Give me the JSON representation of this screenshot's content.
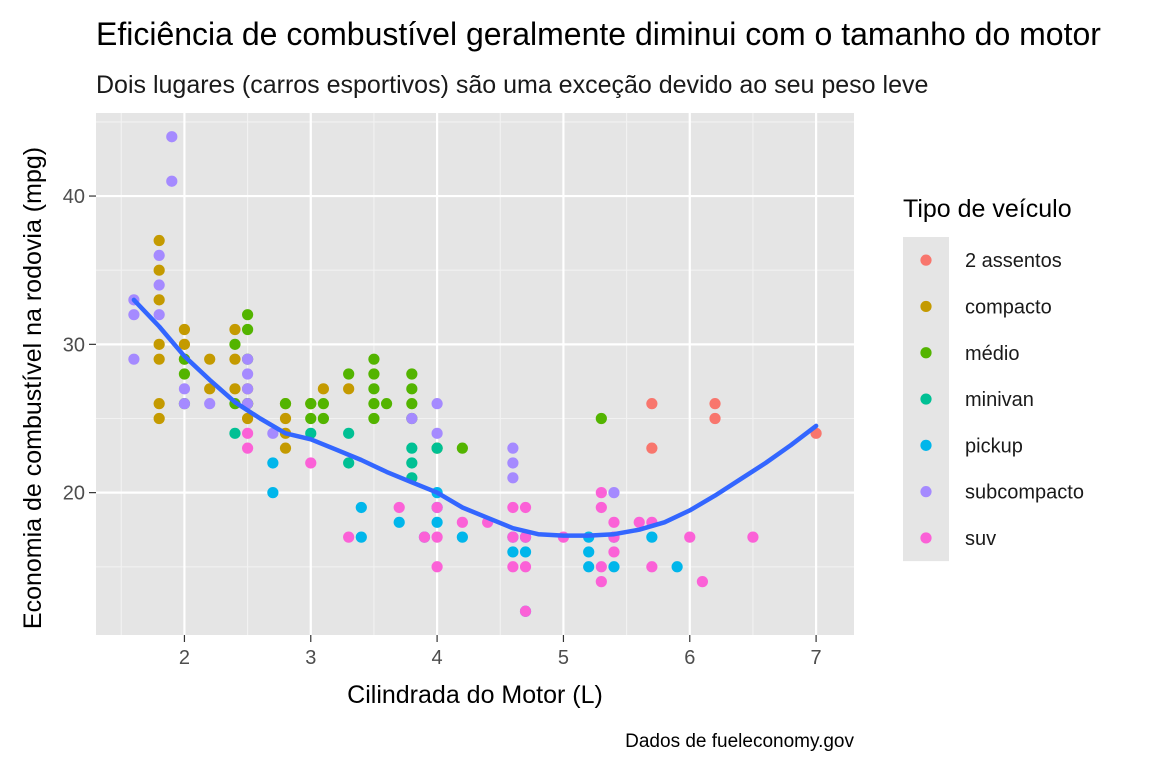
{
  "chart_data": {
    "type": "scatter",
    "title": "Eficiência de combustível geralmente diminui com o tamanho do motor",
    "subtitle": "Dois lugares (carros esportivos) são uma exceção devido ao seu peso leve",
    "caption": "Dados de fueleconomy.gov",
    "xlabel": "Cilindrada do Motor (L)",
    "ylabel": "Economia de combustível na rodovia (mpg)",
    "xlim": [
      1.3,
      7.3
    ],
    "ylim": [
      10.4,
      45.6
    ],
    "xticks": [
      2,
      3,
      4,
      5,
      6,
      7
    ],
    "yticks": [
      20,
      30,
      40
    ],
    "grid": true,
    "background": "#e5e5e5",
    "legend": {
      "title": "Tipo de veículo",
      "position": "right",
      "entries": [
        {
          "label": "2 assentos",
          "color": "#F8766D"
        },
        {
          "label": "compacto",
          "color": "#C49A00"
        },
        {
          "label": "médio",
          "color": "#53B400"
        },
        {
          "label": "minivan",
          "color": "#00C094"
        },
        {
          "label": "pickup",
          "color": "#00B6EB"
        },
        {
          "label": "subcompacto",
          "color": "#A58AFF"
        },
        {
          "label": "suv",
          "color": "#FB61D7"
        }
      ]
    },
    "series": [
      {
        "name": "2 assentos",
        "color": "#F8766D",
        "points": [
          [
            5.7,
            26
          ],
          [
            5.7,
            23
          ],
          [
            6.2,
            26
          ],
          [
            6.2,
            25
          ],
          [
            7.0,
            24
          ]
        ]
      },
      {
        "name": "compacto",
        "color": "#C49A00",
        "points": [
          [
            1.8,
            37
          ],
          [
            1.8,
            35
          ],
          [
            1.8,
            33
          ],
          [
            1.8,
            30
          ],
          [
            1.8,
            29
          ],
          [
            1.8,
            26
          ],
          [
            1.8,
            25
          ],
          [
            2.0,
            31
          ],
          [
            2.0,
            30
          ],
          [
            2.0,
            29
          ],
          [
            2.2,
            29
          ],
          [
            2.2,
            27
          ],
          [
            2.4,
            31
          ],
          [
            2.4,
            29
          ],
          [
            2.4,
            27
          ],
          [
            2.5,
            27
          ],
          [
            2.5,
            26
          ],
          [
            2.5,
            25
          ],
          [
            2.8,
            26
          ],
          [
            2.8,
            25
          ],
          [
            2.8,
            24
          ],
          [
            2.8,
            23
          ],
          [
            3.0,
            26
          ],
          [
            3.1,
            27
          ],
          [
            3.3,
            27
          ]
        ]
      },
      {
        "name": "médio",
        "color": "#53B400",
        "points": [
          [
            2.0,
            29
          ],
          [
            2.0,
            28
          ],
          [
            2.0,
            26
          ],
          [
            2.4,
            30
          ],
          [
            2.4,
            26
          ],
          [
            2.5,
            32
          ],
          [
            2.5,
            31
          ],
          [
            2.5,
            29
          ],
          [
            2.5,
            26
          ],
          [
            2.8,
            26
          ],
          [
            3.0,
            26
          ],
          [
            3.0,
            25
          ],
          [
            3.1,
            26
          ],
          [
            3.1,
            25
          ],
          [
            3.3,
            28
          ],
          [
            3.5,
            29
          ],
          [
            3.5,
            28
          ],
          [
            3.5,
            27
          ],
          [
            3.5,
            26
          ],
          [
            3.5,
            25
          ],
          [
            3.6,
            26
          ],
          [
            3.8,
            28
          ],
          [
            3.8,
            27
          ],
          [
            3.8,
            26
          ],
          [
            3.8,
            25
          ],
          [
            4.0,
            23
          ],
          [
            4.2,
            23
          ],
          [
            5.3,
            25
          ]
        ]
      },
      {
        "name": "minivan",
        "color": "#00C094",
        "points": [
          [
            2.4,
            24
          ],
          [
            3.0,
            24
          ],
          [
            3.3,
            24
          ],
          [
            3.3,
            22
          ],
          [
            3.8,
            23
          ],
          [
            3.8,
            22
          ],
          [
            3.8,
            21
          ],
          [
            4.0,
            23
          ]
        ]
      },
      {
        "name": "pickup",
        "color": "#00B6EB",
        "points": [
          [
            2.7,
            22
          ],
          [
            2.7,
            20
          ],
          [
            3.4,
            19
          ],
          [
            3.4,
            17
          ],
          [
            3.7,
            18
          ],
          [
            3.9,
            17
          ],
          [
            4.0,
            20
          ],
          [
            4.0,
            19
          ],
          [
            4.0,
            18
          ],
          [
            4.2,
            17
          ],
          [
            4.6,
            17
          ],
          [
            4.6,
            16
          ],
          [
            4.7,
            17
          ],
          [
            4.7,
            16
          ],
          [
            4.7,
            12
          ],
          [
            5.2,
            17
          ],
          [
            5.2,
            16
          ],
          [
            5.2,
            15
          ],
          [
            5.4,
            17
          ],
          [
            5.4,
            15
          ],
          [
            5.7,
            17
          ],
          [
            5.9,
            15
          ]
        ]
      },
      {
        "name": "subcompacto",
        "color": "#A58AFF",
        "points": [
          [
            1.6,
            33
          ],
          [
            1.6,
            32
          ],
          [
            1.6,
            29
          ],
          [
            1.8,
            36
          ],
          [
            1.8,
            34
          ],
          [
            1.8,
            32
          ],
          [
            1.9,
            44
          ],
          [
            1.9,
            41
          ],
          [
            2.0,
            27
          ],
          [
            2.0,
            26
          ],
          [
            2.2,
            26
          ],
          [
            2.5,
            29
          ],
          [
            2.5,
            28
          ],
          [
            2.5,
            27
          ],
          [
            2.5,
            26
          ],
          [
            2.7,
            24
          ],
          [
            3.8,
            25
          ],
          [
            4.0,
            26
          ],
          [
            4.0,
            24
          ],
          [
            4.6,
            23
          ],
          [
            4.6,
            22
          ],
          [
            4.6,
            21
          ],
          [
            5.4,
            20
          ]
        ]
      },
      {
        "name": "suv",
        "color": "#FB61D7",
        "points": [
          [
            2.5,
            24
          ],
          [
            2.5,
            23
          ],
          [
            3.0,
            22
          ],
          [
            3.3,
            17
          ],
          [
            3.7,
            19
          ],
          [
            3.9,
            17
          ],
          [
            4.0,
            19
          ],
          [
            4.0,
            17
          ],
          [
            4.0,
            15
          ],
          [
            4.2,
            18
          ],
          [
            4.4,
            18
          ],
          [
            4.6,
            19
          ],
          [
            4.6,
            17
          ],
          [
            4.6,
            15
          ],
          [
            4.7,
            19
          ],
          [
            4.7,
            17
          ],
          [
            4.7,
            15
          ],
          [
            4.7,
            12
          ],
          [
            5.0,
            17
          ],
          [
            5.3,
            20
          ],
          [
            5.3,
            19
          ],
          [
            5.3,
            15
          ],
          [
            5.3,
            14
          ],
          [
            5.4,
            18
          ],
          [
            5.4,
            17
          ],
          [
            5.4,
            16
          ],
          [
            5.6,
            18
          ],
          [
            5.7,
            18
          ],
          [
            5.7,
            15
          ],
          [
            6.0,
            17
          ],
          [
            6.1,
            14
          ],
          [
            6.5,
            17
          ]
        ]
      }
    ],
    "smooth": {
      "color": "#3366FF",
      "points": [
        [
          1.6,
          33.0
        ],
        [
          1.8,
          31.2
        ],
        [
          2.0,
          29.2
        ],
        [
          2.2,
          27.6
        ],
        [
          2.4,
          26.1
        ],
        [
          2.6,
          25.0
        ],
        [
          2.8,
          24.0
        ],
        [
          3.0,
          23.6
        ],
        [
          3.2,
          22.9
        ],
        [
          3.4,
          22.2
        ],
        [
          3.6,
          21.4
        ],
        [
          3.8,
          20.7
        ],
        [
          4.0,
          20.0
        ],
        [
          4.2,
          19.0
        ],
        [
          4.4,
          18.3
        ],
        [
          4.6,
          17.6
        ],
        [
          4.8,
          17.2
        ],
        [
          5.0,
          17.1
        ],
        [
          5.2,
          17.1
        ],
        [
          5.4,
          17.2
        ],
        [
          5.6,
          17.5
        ],
        [
          5.8,
          18.0
        ],
        [
          6.0,
          18.8
        ],
        [
          6.2,
          19.8
        ],
        [
          6.4,
          20.9
        ],
        [
          6.6,
          22.0
        ],
        [
          6.8,
          23.2
        ],
        [
          7.0,
          24.5
        ]
      ]
    }
  }
}
